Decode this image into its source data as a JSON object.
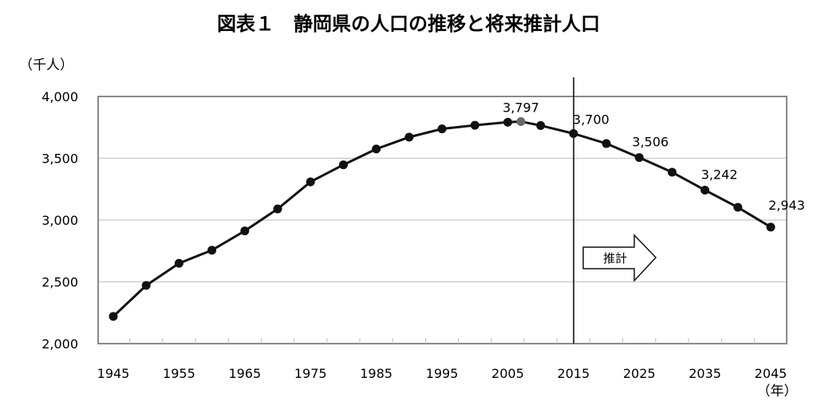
{
  "chart_data": {
    "type": "line",
    "title": "図表１　静岡県の人口の推移と将来推計人口",
    "ylabel": "（千人）",
    "xlabel": "（年）",
    "ylim": [
      2000,
      4000
    ],
    "yticks": [
      2000,
      2500,
      3000,
      3500,
      4000
    ],
    "ytick_labels": [
      "2,000",
      "2,500",
      "3,000",
      "3,500",
      "4,000"
    ],
    "xlim": [
      1942.7,
      2047.3
    ],
    "xtick_labels": [
      "1945",
      "1955",
      "1965",
      "1975",
      "1985",
      "1995",
      "2005",
      "2015",
      "2025",
      "2035",
      "2045"
    ],
    "grid": "horizontal",
    "legend": "none",
    "series": [
      {
        "name": "静岡県の人口",
        "color": "#111111",
        "x": [
          1945,
          1950,
          1955,
          1960,
          1965,
          1970,
          1975,
          1980,
          1985,
          1990,
          1995,
          2000,
          2005,
          2007,
          2010,
          2015,
          2020,
          2025,
          2030,
          2035,
          2040,
          2045
        ],
        "values": [
          2220,
          2471,
          2650,
          2756,
          2912,
          3090,
          3309,
          3447,
          3575,
          3671,
          3738,
          3767,
          3792,
          3797,
          3765,
          3700,
          3619,
          3506,
          3387,
          3242,
          3103,
          2943
        ]
      }
    ],
    "highlight_points": [
      {
        "x": 2007,
        "value": 3797,
        "color": "#6a6a6a"
      }
    ],
    "data_labels": [
      {
        "x": 2007,
        "value": 3797,
        "text": "3,797"
      },
      {
        "x": 2015,
        "value": 3700,
        "text": "3,700"
      },
      {
        "x": 2025,
        "value": 3506,
        "text": "3,506"
      },
      {
        "x": 2035,
        "value": 3242,
        "text": "3,242"
      },
      {
        "x": 2045,
        "value": 2943,
        "text": "2,943"
      }
    ],
    "annotations": [
      {
        "type": "vline",
        "x": 2015,
        "label": ""
      },
      {
        "type": "arrow",
        "text": "推計",
        "direction": "right"
      }
    ]
  }
}
